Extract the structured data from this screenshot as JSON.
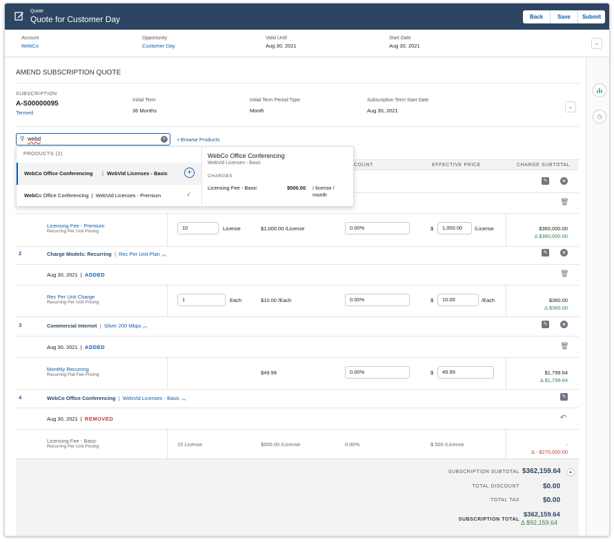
{
  "header": {
    "subtitle": "Quote",
    "title": "Quote for Customer Day",
    "buttons": [
      "Back",
      "Save",
      "Submit"
    ]
  },
  "info": {
    "account_label": "Account",
    "account_value": "WebCo",
    "opportunity_label": "Opportunity",
    "opportunity_value": "Customer Day",
    "valid_label": "Valid Until",
    "valid_value": "Aug 30, 2021",
    "start_label": "Start Date",
    "start_value": "Aug 30, 2021"
  },
  "section_title": "AMEND SUBSCRIPTION QUOTE",
  "subscription": {
    "label": "SUBSCRIPTION",
    "id": "A-S00000095",
    "status": "Termed",
    "initial_term_label": "Initial Term",
    "initial_term_value": "36 Months",
    "period_type_label": "Initial Term Period Type",
    "period_type_value": "Month",
    "term_start_label": "Subscription Term Start Date",
    "term_start_value": "Aug 30, 2021"
  },
  "search": {
    "value": "webd",
    "browse_label": "Browse Products"
  },
  "dropdown": {
    "header": "PRODUCTS (2)",
    "items": [
      {
        "bold": "WebCo Office Conferencing",
        "sep": "|",
        "rest": "WebVid Licenses - Basic"
      },
      {
        "bold": "WebC",
        "rest": "o Office Conferencing  |  WebVid Licenses - Premium"
      }
    ],
    "detail": {
      "title": "WebCo Office Conferencing",
      "subtitle": "WebVid Licenses - Basic",
      "charges_label": "CHARGES",
      "charge_name": "Licensing Fee - Basic",
      "charge_price": "$500.00",
      "charge_unit": "/ license / month"
    }
  },
  "columns": {
    "discount": "COUNT",
    "effective": "EFFECTIVE PRICE",
    "subtotal": "CHARGE SUBTOTAL"
  },
  "item1": {
    "charge_name": "Licensing Fee - Premium",
    "charge_model": "Recurring Per Unit Pricing",
    "qty": "10",
    "uom": "License",
    "list": "$1,000.00 /License",
    "discount": "0.00%",
    "currency": "$",
    "eff": "1,000.00",
    "eff_unit": "/License",
    "subtotal": "$360,000.00",
    "delta": "Δ $360,000.00"
  },
  "item2": {
    "num": "2",
    "name": "Charge Models: Recurring",
    "sep": "|",
    "plan": "Rec Per Unit Plan",
    "date": "Aug 30, 2021",
    "status": "ADDED",
    "charge_name": "Rec Per Unit Charge",
    "charge_model": "Recurring Per Unit Pricing",
    "qty": "1",
    "uom": "Each",
    "list": "$10.00 /Each",
    "discount": "0.00%",
    "currency": "$",
    "eff": "10.00",
    "eff_unit": "/Each",
    "subtotal": "$360.00",
    "delta": "Δ $360.00"
  },
  "item3": {
    "num": "3",
    "name": "Commercial Internet",
    "sep": "|",
    "plan": "Silver 200 Mbps",
    "date": "Aug 30, 2021",
    "status": "ADDED",
    "charge_name": "Monthly Recurring",
    "charge_model": "Recurring Flat Fee Pricing",
    "list": "$49.99",
    "discount": "0.00%",
    "currency": "$",
    "eff": "49.99",
    "subtotal": "$1,799.64",
    "delta": "Δ $1,799.64"
  },
  "item4": {
    "num": "4",
    "name": "WebCo Office Conferencing",
    "sep": "|",
    "plan": "WebVid Licenses - Basic",
    "date": "Aug 30, 2021",
    "status": "REMOVED",
    "charge_name": "Licensing Fee - Basic",
    "charge_model": "Recurring Per Unit Pricing",
    "qty": "15 License",
    "list": "$500.00 /License",
    "discount": "0.00%",
    "eff": "$ 500 /License",
    "subtotal": "-",
    "delta": "Δ - $270,000.00"
  },
  "summary": {
    "subtotal_label": "SUBSCRIPTION SUBTOTAL",
    "subtotal_value": "$362,159.64",
    "discount_label": "TOTAL DISCOUNT",
    "discount_value": "$0.00",
    "tax_label": "TOTAL TAX",
    "tax_value": "$0.00",
    "total_label": "SUBSCRIPTION TOTAL",
    "total_value": "$362,159.64",
    "total_delta": "Δ $92,159.64"
  },
  "colors": {
    "header_bg": "#2d4562",
    "link": "#0b5cab",
    "green": "#2e844a",
    "red": "#c23934"
  }
}
